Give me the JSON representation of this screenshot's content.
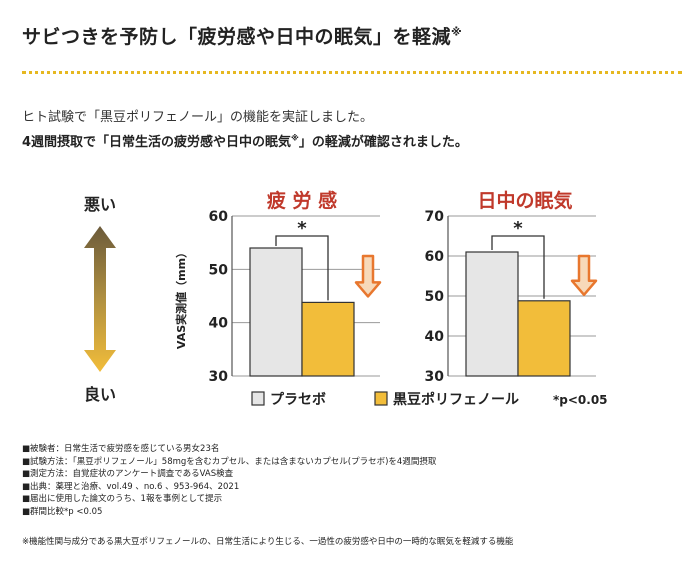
{
  "header": {
    "title": "サビつきを予防し「疲労感や日中の眠気」を軽減",
    "title_mark": "※"
  },
  "intro": {
    "line1": "ヒト試験で「黒豆ポリフェノール」の機能を実証しました。",
    "line2_a": "4週間摂取で「日常生活の疲労感や日中の眠気",
    "line2_mark": "※",
    "line2_b": "」の軽減が確認されました。"
  },
  "scale": {
    "bad": "悪い",
    "good": "良い"
  },
  "chart_data": [
    {
      "type": "bar",
      "title": "疲 労 感",
      "ylabel": "VAS実測値（mm）",
      "ylim": [
        30,
        60
      ],
      "yticks": [
        30,
        40,
        50,
        60
      ],
      "categories": [
        "プラセボ",
        "黒豆ポリフェノール"
      ],
      "values": [
        54,
        43.8
      ],
      "significance": "*"
    },
    {
      "type": "bar",
      "title": "日中の眠気",
      "ylabel": "",
      "ylim": [
        30,
        70
      ],
      "yticks": [
        30,
        40,
        50,
        60,
        70
      ],
      "categories": [
        "プラセボ",
        "黒豆ポリフェノール"
      ],
      "values": [
        61,
        48.8
      ],
      "significance": "*"
    }
  ],
  "legend": {
    "placebo": "プラセボ",
    "polyphenol": "黒豆ポリフェノール",
    "pvalue": "*p<0.05"
  },
  "colors": {
    "placebo": "#e6e6e6",
    "polyphenol": "#f2bd3a",
    "title_red": "#c0392b",
    "arrow_orange": "#e8772e",
    "dots": "#e6b820"
  },
  "notes": [
    "■被験者：日常生活で疲労感を感じている男女23名",
    "■試験方法：「黒豆ポリフェノール」58mgを含むカプセル、または含まないカプセル(プラセボ)を4週間摂取",
    "■測定方法：自覚症状のアンケート調査であるVAS検査",
    "■出典：薬理と治療、vol.49 、no.6 、953-964、2021",
    "■届出に使用した論文のうち、1報を事例として提示",
    "■群間比較*p <0.05"
  ],
  "footnote": "※機能性関与成分である黒大豆ポリフェノールの、日常生活により生じる、一過性の疲労感や日中の一時的な眠気を軽減する機能"
}
